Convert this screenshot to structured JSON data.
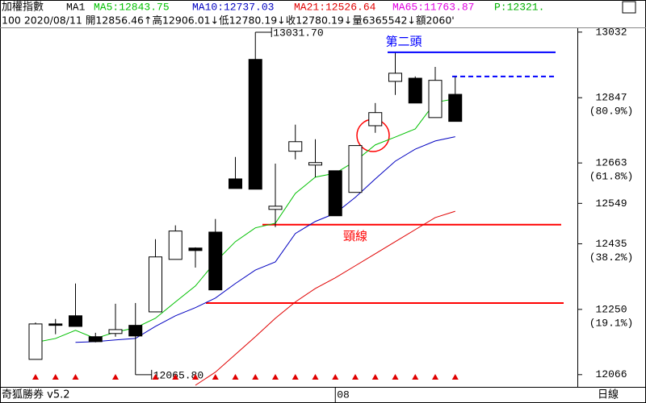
{
  "header": {
    "index_name": "加權指數",
    "period": "MA1",
    "extra": [
      {
        "text": "MA65:11763.87",
        "color": "#e000e0"
      },
      {
        "text": "P:12321.",
        "color": "#00b000"
      }
    ],
    "line2": "100 2020/08/11 開12856.46↑高12906.01↓低12780.19↓收12780.19↓量6365542↓額2060'"
  },
  "chart_data": {
    "type": "candlestick",
    "categories": [
      null,
      null,
      null,
      null,
      null,
      null,
      null,
      null,
      null,
      null,
      null,
      null,
      null,
      null,
      null,
      "08",
      null,
      null,
      null,
      null,
      null,
      null
    ],
    "ohlc": {
      "open": [
        12109,
        12209,
        12232,
        12173,
        12182,
        12205,
        12243,
        12391,
        12423,
        12468,
        12618,
        12955,
        12532,
        12696,
        12657,
        12641,
        12580,
        12768,
        12893,
        12902,
        12791,
        12856.46
      ],
      "high": [
        12213,
        12223,
        12323,
        12184,
        12266,
        12268,
        12448,
        12487,
        12425,
        12505,
        12680,
        13031.7,
        12661,
        12771,
        12730,
        12641,
        12712,
        12832,
        12973,
        12907,
        12934,
        12906.01
      ],
      "low": [
        12109,
        12180,
        12202,
        12157,
        12173,
        12065.8,
        12243,
        12391,
        12368,
        12305,
        12591,
        12589,
        12482,
        12673,
        12623,
        12514,
        12580,
        12748,
        12855,
        12832,
        12791,
        12780.19
      ],
      "close": [
        12209,
        12205,
        12202,
        12159,
        12193,
        12175,
        12398,
        12471,
        12416,
        12305,
        12591,
        12589,
        12541,
        12723,
        12664,
        12514,
        12712,
        12805,
        12916,
        12832,
        12896,
        12780.19
      ]
    },
    "up_color": "#ffffff",
    "down_color": "#000000",
    "series": [
      {
        "name": "MA5:12843.75",
        "color": "#00c000",
        "values": [
          12157,
          12168,
          12191,
          12168,
          12186,
          12198,
          12225,
          12271,
          12316,
          12384,
          12441,
          12480,
          12493,
          12577,
          12623,
          12634,
          12668,
          12714,
          12736,
          12759,
          12834,
          12843.75
        ]
      },
      {
        "name": "MA10:12737.03",
        "color": "#0000c0",
        "values": [
          null,
          null,
          12157,
          12159,
          12164,
          12168,
          12202,
          12232,
          12255,
          12282,
          12323,
          12361,
          12384,
          12464,
          12498,
          12521,
          12566,
          12618,
          12668,
          12702,
          12725,
          12737.03
        ]
      },
      {
        "name": "MA21:12526.64",
        "color": "#e00000",
        "values": [
          null,
          null,
          null,
          null,
          null,
          null,
          null,
          null,
          12036,
          12073,
          12123,
          12173,
          12225,
          12271,
          12309,
          12339,
          12373,
          12407,
          12441,
          12475,
          12509,
          12526.64
        ]
      }
    ],
    "ylim": [
      12036,
      13043
    ],
    "yticks": [
      12066,
      12250,
      12435,
      12549,
      12663,
      12847,
      13032
    ],
    "ytick_notes": [
      {
        "value": 12250,
        "label": "(19.1%)"
      },
      {
        "value": 12435,
        "label": "(38.2%)"
      },
      {
        "value": 12663,
        "label": "(61.8%)"
      },
      {
        "value": 12847,
        "label": "(80.9%)"
      }
    ],
    "hlines": [
      {
        "value": 12975,
        "color": "#0000ff",
        "dashed": false,
        "label": "第二頭"
      },
      {
        "value": 12907,
        "color": "#0000ff",
        "dashed": true
      },
      {
        "value": 12489,
        "color": "#ff0000",
        "dashed": false,
        "label": "頸線"
      },
      {
        "value": 12268,
        "color": "#ff0000",
        "dashed": false
      }
    ],
    "annotations": [
      {
        "text": "13031.70",
        "value": 13031.7,
        "index": 11
      },
      {
        "text": "12065.80",
        "value": 12065.8,
        "index": 5
      }
    ],
    "footer": {
      "left": "奇狐勝券 v5.2",
      "right": "日線"
    }
  }
}
